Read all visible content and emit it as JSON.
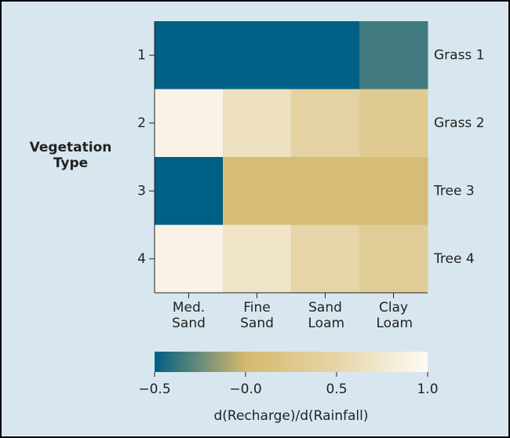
{
  "chart_data": {
    "type": "heatmap",
    "ylabel": "Vegetation Type",
    "categories": [
      "Med. Sand",
      "Fine Sand",
      "Sand Loam",
      "Clay Loam"
    ],
    "rows": [
      "1",
      "2",
      "3",
      "4"
    ],
    "row_labels": [
      "Grass 1",
      "Grass 2",
      "Tree 3",
      "Tree 4"
    ],
    "values": [
      [
        -0.5,
        -0.5,
        -0.5,
        -0.35
      ],
      [
        0.9,
        0.65,
        0.45,
        0.3
      ],
      [
        -0.5,
        0.05,
        0.05,
        0.05
      ],
      [
        0.9,
        0.7,
        0.5,
        0.35
      ]
    ],
    "colormap": [
      "#005f85",
      "#d4b96e",
      "#e6d5a8",
      "#fdfbf5"
    ],
    "clim": [
      -0.5,
      1.0
    ],
    "cticks": [
      {
        "value": -0.5,
        "label": "−0.5"
      },
      {
        "value": 0,
        "label": "−0.0"
      },
      {
        "value": 0.5,
        "label": "0.5"
      },
      {
        "value": 1.0,
        "label": "1.0"
      }
    ],
    "clabel": "d(Recharge)/d(Rainfall)"
  }
}
